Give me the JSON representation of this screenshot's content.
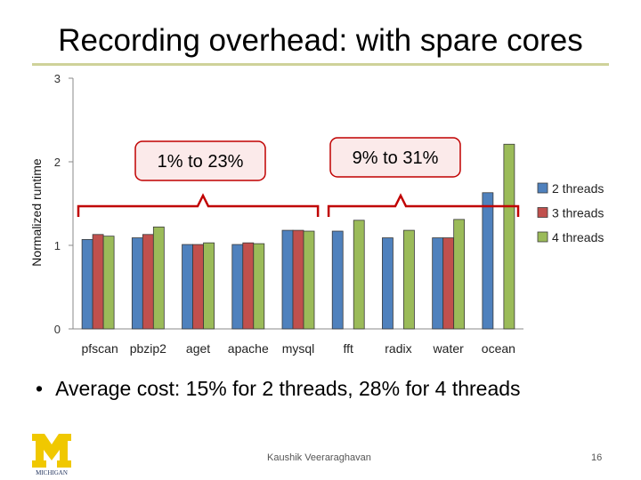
{
  "slide": {
    "title": "Recording overhead: with spare cores",
    "bullet": "Average cost: 15% for 2 threads, 28% for 4 threads",
    "footer": "Kaushik Veeraraghavan",
    "page_number": "16",
    "logo_text": "MICHIGAN"
  },
  "chart_data": {
    "type": "bar",
    "ylabel": "Normalized runtime",
    "ylim": [
      0,
      3
    ],
    "yticks": [
      "0",
      "1",
      "2",
      "3"
    ],
    "categories": [
      "pfscan",
      "pbzip2",
      "aget",
      "apache",
      "mysql",
      "fft",
      "radix",
      "water",
      "ocean"
    ],
    "series": [
      {
        "name": "2 threads",
        "color": "#4f81bd",
        "values": [
          1.07,
          1.09,
          1.01,
          1.01,
          1.18,
          1.17,
          1.09,
          1.09,
          1.63
        ]
      },
      {
        "name": "3 threads",
        "color": "#c0504d",
        "values": [
          1.13,
          1.13,
          1.01,
          1.03,
          1.18,
          null,
          null,
          1.09,
          null
        ]
      },
      {
        "name": "4 threads",
        "color": "#9bbb59",
        "values": [
          1.11,
          1.22,
          1.03,
          1.02,
          1.17,
          1.3,
          1.18,
          1.31,
          2.21
        ]
      }
    ],
    "legend_position": "right",
    "annotations": [
      {
        "text": "1% to 23%",
        "from_category": 0,
        "to_category": 4
      },
      {
        "text": "9% to 31%",
        "from_category": 5,
        "to_category": 8
      }
    ]
  }
}
